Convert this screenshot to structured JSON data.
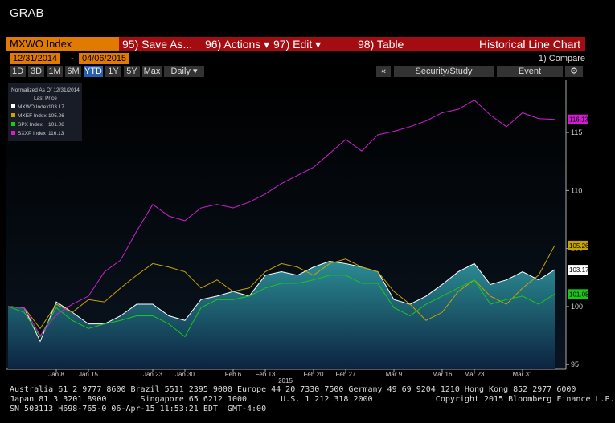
{
  "header": {
    "title": "GRAB"
  },
  "toolbar": {
    "security": "MXWO Index",
    "buttons": [
      "95) Save As...",
      "96) Actions ▾",
      "97) Edit ▾",
      "98) Table"
    ],
    "view": "Historical Line Chart",
    "start_date": "12/31/2014",
    "date_sep": "-",
    "end_date": "04/06/2015",
    "compare": "1) Compare",
    "periods": [
      "1D",
      "3D",
      "1M",
      "6M",
      "YTD",
      "1Y",
      "5Y",
      "Max"
    ],
    "active_period": "YTD",
    "frequency": "Daily ▾",
    "collapse": "«",
    "study": "Security/Study",
    "event": "Event"
  },
  "chart_data": {
    "type": "line",
    "legend_title": "Normalized As Of 12/31/2014",
    "legend_subtitle": "Last Price",
    "year_label": "2015",
    "categories": [
      null,
      null,
      null,
      "Jan 8",
      null,
      "Jan 15",
      null,
      null,
      null,
      "Jan 23",
      null,
      "Jan 30",
      null,
      null,
      "Feb 6",
      null,
      "Feb 13",
      null,
      null,
      "Feb 20",
      null,
      "Feb 27",
      null,
      null,
      "Mar 9",
      null,
      null,
      "Mar 16",
      null,
      "Mar 23",
      null,
      null,
      "Mar 31",
      null,
      null
    ],
    "series": [
      {
        "name": "MXWO Index",
        "color": "#ffffff",
        "area": true,
        "values": [
          100,
          99.9,
          97,
          100.4,
          99.5,
          98.5,
          98.5,
          99.2,
          100.2,
          100.2,
          99.2,
          98.8,
          100.6,
          100.9,
          101.3,
          100.9,
          102.7,
          103,
          102.7,
          103.4,
          103.9,
          103.7,
          103.4,
          103,
          100.6,
          100.2,
          100.9,
          101.9,
          103,
          103.7,
          101.9,
          102.3,
          103,
          102.3,
          103.17
        ]
      },
      {
        "name": "MXEF Index",
        "color": "#c8a400",
        "values": [
          100,
          99.9,
          98.1,
          100.2,
          99.5,
          100.6,
          100.4,
          101.6,
          102.7,
          103.7,
          103.4,
          103,
          101.6,
          102.3,
          101.3,
          101.6,
          103,
          103.7,
          103.4,
          102.7,
          103.7,
          104.1,
          103.4,
          103,
          101.3,
          100.2,
          98.8,
          99.5,
          101.3,
          102.3,
          100.9,
          100.2,
          101.6,
          102.7,
          105.26
        ]
      },
      {
        "name": "SPX Index",
        "color": "#19c819",
        "values": [
          100,
          99.5,
          97.4,
          99.9,
          98.8,
          98.1,
          98.5,
          98.8,
          99.2,
          99.2,
          98.5,
          97.4,
          99.9,
          100.6,
          100.6,
          100.9,
          101.6,
          102,
          102,
          102.3,
          102.7,
          102.7,
          102,
          102,
          99.9,
          99.2,
          100.2,
          100.9,
          101.6,
          102.3,
          100.2,
          100.6,
          100.9,
          100.2,
          101.08
        ]
      },
      {
        "name": "SXXP Index",
        "color": "#d21ed2",
        "values": [
          100,
          99.9,
          97.5,
          99.3,
          100.2,
          100.9,
          103,
          104,
          106.5,
          108.8,
          107.8,
          107.4,
          108.5,
          108.8,
          108.5,
          109,
          109.7,
          110.6,
          111.3,
          112,
          113.2,
          114.4,
          113.4,
          114.8,
          115.1,
          115.5,
          116,
          116.7,
          117,
          117.8,
          116.5,
          115.5,
          116.7,
          116.2,
          116.13
        ]
      }
    ],
    "ylim": [
      94.6,
      119.5
    ],
    "yticks": [
      95,
      100,
      105,
      110,
      115
    ]
  },
  "footer": {
    "lines": [
      "Australia 61 2 9777 8600 Brazil 5511 2395 9000 Europe 44 20 7330 7500 Germany 49 69 9204 1210 Hong Kong 852 2977 6000",
      "Japan 81 3 3201 8900       Singapore 65 6212 1000       U.S. 1 212 318 2000             Copyright 2015 Bloomberg Finance L.P.",
      "SN 503113 H698-765-0 06-Apr-15 11:53:21 EDT  GMT-4:00"
    ]
  }
}
